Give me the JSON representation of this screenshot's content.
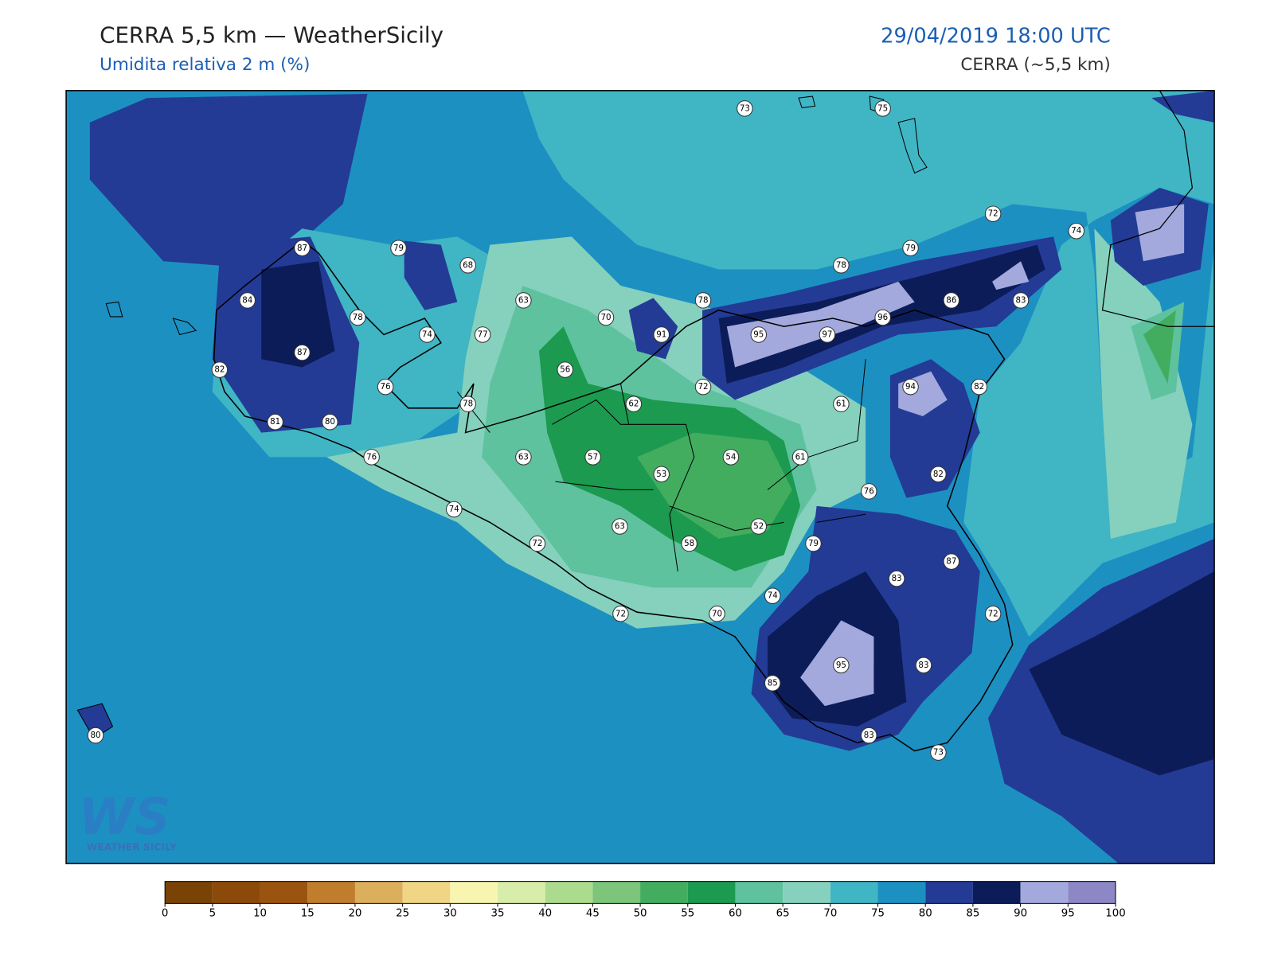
{
  "header": {
    "title": "CERRA 5,5 km — WeatherSicily",
    "subtitle": "Umidita relativa 2 m (%)",
    "datetime": "29/04/2019 18:00 UTC",
    "source": "CERRA (~5,5 km)"
  },
  "stations": [
    73,
    75,
    87,
    79,
    68,
    72,
    74,
    79,
    78,
    84,
    63,
    78,
    86,
    83,
    70,
    96,
    78,
    74,
    77,
    91,
    95,
    97,
    87,
    82,
    56,
    72,
    94,
    82,
    76,
    78,
    62,
    61,
    81,
    80,
    76,
    63,
    57,
    54,
    61,
    53,
    82,
    76,
    74,
    63,
    52,
    72,
    58,
    79,
    87,
    83,
    74,
    72,
    70,
    72,
    95,
    83,
    85,
    83,
    73,
    80
  ],
  "colorbar": {
    "ticks": [
      0,
      5,
      10,
      15,
      20,
      25,
      30,
      35,
      40,
      45,
      50,
      55,
      60,
      65,
      70,
      75,
      80,
      85,
      90,
      95,
      100
    ],
    "colors": [
      "#7a4306",
      "#8c4a0a",
      "#9a5410",
      "#c07e2c",
      "#dcaf5c",
      "#f0d585",
      "#f7f5b0",
      "#d8edaa",
      "#abdc8e",
      "#7cc57b",
      "#42ad5f",
      "#1c9a50",
      "#5ec29e",
      "#85d1bd",
      "#40b5c4",
      "#1d90c2",
      "#233b95",
      "#0c1c58",
      "#a3a9dc",
      "#8d87c6"
    ]
  },
  "logo": {
    "mark": "WS",
    "text": "WEATHER SICILY"
  }
}
